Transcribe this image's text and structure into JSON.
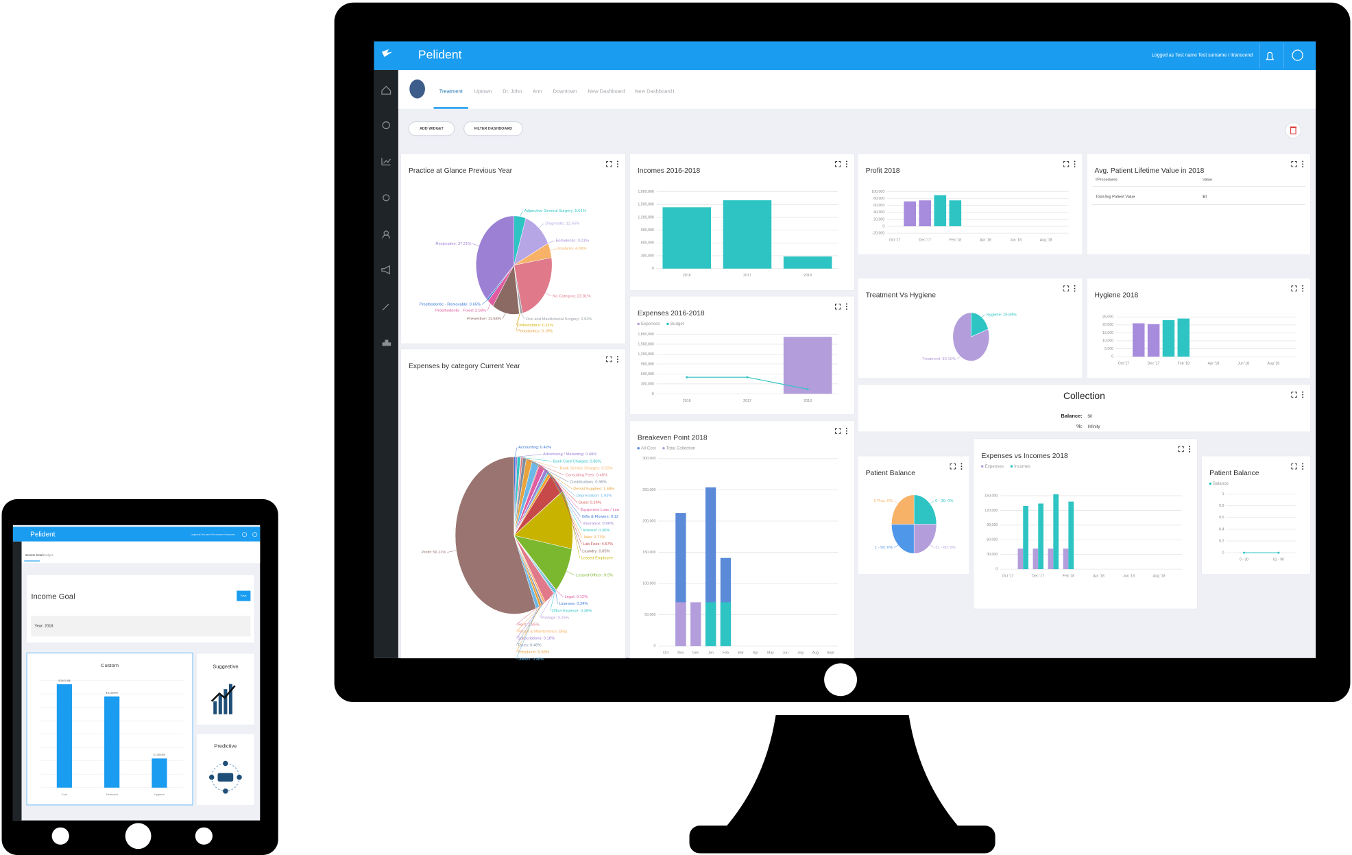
{
  "monitor": {
    "app_name": "Pelident",
    "user": "Logged as Test name Test surname / Itranscend",
    "tabs": [
      "Treatment",
      "Uptown",
      "Dr. John",
      "Ann",
      "Downtown",
      "New Dashboard",
      "New Dashboard1"
    ],
    "buttons": [
      "ADD WIDGET",
      "FILTER DASHBOARD"
    ],
    "widgets": [
      {
        "title": "Practice at Glance Previous Year",
        "chart_data": {
          "type": "pie",
          "values": [
            5.01,
            12.65,
            0.01,
            4.86,
            23.81,
            0.93,
            0.21,
            0.19,
            11.58,
            2.69,
            0.65,
            37.21
          ],
          "value_labels": [
            "Adjunctive General Surgery: 5.01%",
            "Diagnostic: 12.65%",
            "Endodontic: 0.01%",
            "Implants: 4.86%",
            "No Category: 23.81%",
            "Oral and Maxillofacial Surgery: 0.93%",
            "Orthodontics: 0.21%",
            "Periodontics: 0.19%",
            "Preventive: 11.58%",
            "Prosthodontic - Fixed: 2.69%",
            "Prosthodontic - Removable: 0.65%",
            "Restorative: 37.21%"
          ],
          "colors": [
            "#2ec4c4",
            "#b7a6e6",
            "#a58fd9",
            "#f7b267",
            "#e07a8a",
            "#9aa0a6",
            "#d4b000",
            "#e8a33d",
            "#8c6a64",
            "#e05ca0",
            "#3a78d8",
            "#9b80d4"
          ]
        }
      },
      {
        "title": "Incomes 2016-2018",
        "chart_data": {
          "type": "bar",
          "categories": [
            "2016",
            "2017",
            "2018"
          ],
          "values": [
            1436000,
            1600000,
            283000
          ],
          "color": "#2ec4c4",
          "ylim": [
            0,
            1800000
          ],
          "yticks": [
            0,
            {
              "value": 300000,
              "label": "300,000"
            },
            {
              "value": 600000,
              "label": "600,000"
            },
            {
              "value": 900000,
              "label": "900,000"
            },
            {
              "value": 1200000,
              "label": "1,200,000"
            },
            {
              "value": 1500000,
              "label": "1,500,000"
            },
            {
              "value": 1800000,
              "label": "1,800,000"
            }
          ]
        }
      },
      {
        "title": "Profit 2018",
        "chart_data": {
          "type": "bar",
          "categories": [
            "Oct '17",
            null,
            "Dec '17",
            null,
            "Feb '18",
            null,
            "Apr '18",
            null,
            "Jun '18",
            null,
            "Aug '18",
            null
          ],
          "values": [
            0,
            72000,
            75000,
            90000,
            75000,
            0,
            0,
            0,
            0,
            0,
            0,
            0
          ],
          "colors": [
            "#2ec4c4",
            "#a78bdc",
            "#a78bdc",
            "#2ec4c4",
            "#2ec4c4",
            "#2ec4c4",
            "#2ec4c4",
            "#2ec4c4",
            "#2ec4c4",
            "#2ec4c4",
            "#2ec4c4",
            "#2ec4c4"
          ],
          "ylim": [
            -20000,
            100000
          ],
          "yticks": [
            {
              "value": -20000,
              "label": "-20,000"
            },
            0,
            {
              "value": 20000,
              "label": "20,000"
            },
            {
              "value": 40000,
              "label": "40,000"
            },
            {
              "value": 60000,
              "label": "60,000"
            },
            {
              "value": 80000,
              "label": "80,000"
            },
            {
              "value": 100000,
              "label": "100,000"
            }
          ]
        }
      },
      {
        "title": "Avg. Patient Lifetime Value in 2018",
        "table": {
          "columns": [
            "#Procedures",
            "Value"
          ],
          "rows": [
            [
              "Total Avg Patient Value",
              "$0"
            ]
          ]
        }
      },
      {
        "title": "Expenses 2016-2018",
        "chart_data": {
          "type": "bar",
          "categories": [
            "2016",
            "2017",
            "2018"
          ],
          "series": [
            {
              "name": "Expenses",
              "color": "#b39ddb",
              "values": [
                0,
                0,
                1720000
              ]
            },
            {
              "name": "Budget",
              "type": "line",
              "color": "#2ec4c4",
              "values": [
                500000,
                500000,
                140000
              ]
            }
          ],
          "ylim": [
            0,
            1800000
          ],
          "yticks": [
            0,
            {
              "value": 300000,
              "label": "300,000"
            },
            {
              "value": 600000,
              "label": "600,000"
            },
            {
              "value": 900000,
              "label": "900,000"
            },
            {
              "value": 1200000,
              "label": "1,200,000"
            },
            {
              "value": 1500000,
              "label": "1,500,000"
            },
            {
              "value": 1800000,
              "label": "1,800,000"
            }
          ]
        }
      },
      {
        "title": "Treatment Vs Hygiene",
        "chart_data": {
          "type": "pie",
          "values": [
            19.84,
            80.16
          ],
          "value_labels": [
            "Hygiene: 19.84%",
            "Treatment: 80.16%"
          ],
          "colors": [
            "#2ec4c4",
            "#b39ddb"
          ]
        }
      },
      {
        "title": "Hygiene 2018",
        "chart_data": {
          "type": "bar",
          "categories": [
            "Oct '17",
            null,
            "Dec '17",
            null,
            "Feb '18",
            null,
            "Apr '18",
            null,
            "Jun '18",
            null,
            "Aug '18",
            null
          ],
          "values": [
            0,
            21000,
            20500,
            23000,
            24000,
            0,
            0,
            0,
            0,
            0,
            0,
            0
          ],
          "colors": [
            "#2ec4c4",
            "#a78bdc",
            "#a78bdc",
            "#2ec4c4",
            "#2ec4c4",
            "#2ec4c4",
            "#2ec4c4",
            "#2ec4c4",
            "#2ec4c4",
            "#2ec4c4",
            "#2ec4c4",
            "#2ec4c4"
          ],
          "ylim": [
            0,
            25000
          ],
          "yticks": [
            0,
            {
              "value": 5000,
              "label": "5,000"
            },
            {
              "value": 10000,
              "label": "10,000"
            },
            {
              "value": 15000,
              "label": "15,000"
            },
            {
              "value": 20000,
              "label": "20,000"
            },
            {
              "value": 25000,
              "label": "25,000"
            }
          ]
        }
      },
      {
        "title": "Expenses by category Current Year",
        "chart_data": {
          "type": "pie",
          "values": [
            0.42,
            0.49,
            0.86,
            0.15,
            0.48,
            0.96,
            1.68,
            1.93,
            0.24,
            1.5,
            0.12,
            0.96,
            0.36,
            0.77,
            4.57,
            0.05,
            12.2,
            9.5,
            0.12,
            0.24,
            0.38,
            0.25,
            2.85,
            0.53,
            0.18,
            0.48,
            0.66,
            0.96,
            56.11
          ],
          "value_labels": [
            "Accounting: 0.42%",
            "Advertising / Marketing: 0.49%",
            "Bank Card Charges: 0.86%",
            "Bank Service Charges: 0.15%",
            "Consulting Fees: 0.48%",
            "Contributions: 0.96%",
            "Dental Supplies: 1.68%",
            "Depreciation: 1.93%",
            "Dues: 0.24%",
            "Equipment Loan / Lea",
            "Gifts & Flowers: 0.12",
            "Insurance: 0.96%",
            "Interest: 0.36%",
            "Jake: 0.77%",
            "Lab Fees: 4.57%",
            "Laundry: 0.05%",
            "Leased Employee",
            "Leased Officer: 9.5%",
            "Legal: 0.12%",
            "Licenses: 0.24%",
            "Office Expense: 0.38%",
            "Postage: 0.25%",
            "Rent: 2.85%",
            "Repair & Maintenance, Bldg",
            "Subscriptions: 0.18%",
            "Taxes: 0.48%",
            "Telephone: 0.66%",
            "Utilities: 0.96%",
            "Profit: 56.11%"
          ],
          "colors": [
            "#3a78d8",
            "#9b80d4",
            "#2ec4c4",
            "#f7b267",
            "#e07a8a",
            "#7b8ea0",
            "#e8a33d",
            "#6bb8e8",
            "#d9534f",
            "#e05ca0",
            "#3a78d8",
            "#9b80d4",
            "#2ec4c4",
            "#f0a030",
            "#c8494a",
            "#8c6a64",
            "#c8b400",
            "#7cb82f",
            "#e05ca0",
            "#3a78d8",
            "#2ec4c4",
            "#b39ddb",
            "#e07a8a",
            "#f7b267",
            "#9b80d4",
            "#7b8ea0",
            "#e8a33d",
            "#6bb8e8",
            "#9a7470"
          ]
        }
      },
      {
        "title": "Breakeven Point 2018",
        "chart_data": {
          "type": "bar",
          "overlap": true,
          "categories": [
            "Oct",
            "Nov",
            "Dec",
            "Jan",
            "Feb",
            "Mar",
            "Apr",
            "May",
            "Jun",
            "July",
            "Aug",
            "Sept"
          ],
          "series": [
            {
              "name": "All Cost",
              "color": "#5b8bd8",
              "values": [
                0,
                213000,
                0,
                254000,
                141000,
                0,
                0,
                0,
                0,
                0,
                0,
                0
              ]
            },
            {
              "name": "Total Collection",
              "color": "#b39ddb",
              "colors": [
                "#b39ddb",
                "#b39ddb",
                "#b39ddb",
                "#2ec4c4",
                "#2ec4c4",
                "#b39ddb",
                "#b39ddb",
                "#b39ddb",
                "#b39ddb",
                "#b39ddb",
                "#b39ddb",
                "#b39ddb"
              ],
              "values": [
                0,
                70000,
                70000,
                70000,
                70000,
                0,
                0,
                0,
                0,
                0,
                0,
                0
              ]
            }
          ],
          "ylim": [
            0,
            300000
          ],
          "yticks": [
            0,
            {
              "value": 50000,
              "label": "50,000"
            },
            {
              "value": 100000,
              "label": "100,000"
            },
            {
              "value": 150000,
              "label": "150,000"
            },
            {
              "value": 200000,
              "label": "200,000"
            },
            {
              "value": 250000,
              "label": "250,000"
            },
            {
              "value": 300000,
              "label": "300,000"
            }
          ]
        }
      },
      {
        "title": "Collection",
        "rows": [
          [
            "Balance:",
            "$0"
          ],
          [
            "%:",
            "Infinity"
          ]
        ]
      },
      {
        "title": "Patient Balance",
        "chart_data": {
          "type": "pie",
          "values": [
            0,
            0,
            0,
            0
          ],
          "value_labels": [
            "0 - 30: 0%",
            "31 - 60: 0%",
            "1 - 90: 0%",
            "0 Plus: 0%"
          ],
          "colors": [
            "#2ec4c4",
            "#b39ddb",
            "#4f97e8",
            "#f7b267"
          ]
        }
      },
      {
        "title": "Expenses vs Incomes 2018",
        "chart_data": {
          "type": "bar",
          "categories": [
            "Oct '17",
            null,
            "Dec '17",
            null,
            "Feb '18",
            null,
            "Apr '18",
            null,
            "Jun '18",
            null,
            "Aug '18",
            null
          ],
          "series": [
            {
              "name": "Expenses",
              "color": "#b39ddb",
              "values": [
                0,
                42000,
                42000,
                42000,
                42000,
                0,
                0,
                0,
                0,
                0,
                0,
                0
              ]
            },
            {
              "name": "Incomes",
              "color": "#2ec4c4",
              "values": [
                0,
                129000,
                134000,
                153000,
                138000,
                0,
                0,
                0,
                0,
                0,
                0,
                0
              ]
            }
          ],
          "ylim": [
            0,
            180000
          ],
          "yticks": [
            0,
            {
              "value": 30000,
              "label": "30,000"
            },
            {
              "value": 60000,
              "label": "60,000"
            },
            {
              "value": 90000,
              "label": "90,000"
            },
            {
              "value": 120000,
              "label": "120,000"
            },
            {
              "value": 150000,
              "label": "150,000"
            }
          ]
        }
      },
      {
        "title": "Patient Balance",
        "chart_data": {
          "type": "bar",
          "categories": [
            "0 - 30",
            "61 - 90"
          ],
          "series": [
            {
              "name": "Balance",
              "type": "line",
              "color": "#2ec4c4",
              "values": [
                0,
                0
              ]
            }
          ],
          "ylim": [
            0,
            1
          ],
          "yticks": [
            0,
            0.2,
            0.4,
            0.6,
            0.8,
            1
          ]
        }
      }
    ]
  },
  "tablet": {
    "app_name": "Pelident",
    "user": "Logged as Test name Test surname / Itranscend",
    "tabs": [
      "Income Goal",
      "Budget"
    ],
    "card_title": "Income Goal",
    "button": "Save",
    "year": "Year: 2018",
    "chart_data": {
      "type": "bar",
      "title": "Custom",
      "categories": [
        "Goal",
        "Treatment",
        "Hygiene"
      ],
      "values": [
        3547498,
        3130000,
        1000000
      ],
      "value_labels": [
        "$ 3,547,498",
        "$ 3,130,000",
        "$ 1,000,000"
      ],
      "color": "#1a9cf0",
      "ylim": [
        0,
        4000000
      ]
    },
    "cards": [
      "Suggestive",
      "Predictive"
    ]
  }
}
